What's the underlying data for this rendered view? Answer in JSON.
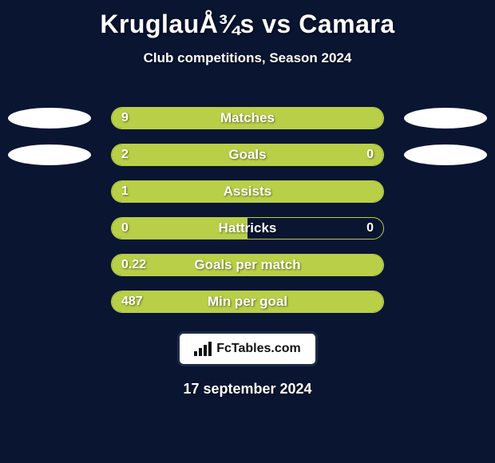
{
  "title": "KruglauÅ¾s vs Camara",
  "subtitle": "Club competitions, Season 2024",
  "background_color": "#0a1532",
  "accent_color": "#b8cf47",
  "text_color": "#ffffff",
  "footer_date": "17 september 2024",
  "logo_text": "FcTables.com",
  "stats": [
    {
      "label": "Matches",
      "left_value": "9",
      "right_value": "",
      "left_fill_pct": 100,
      "right_fill_pct": 0,
      "show_left_ellipse": true,
      "show_right_ellipse": true
    },
    {
      "label": "Goals",
      "left_value": "2",
      "right_value": "0",
      "left_fill_pct": 77,
      "right_fill_pct": 23,
      "show_left_ellipse": true,
      "show_right_ellipse": true
    },
    {
      "label": "Assists",
      "left_value": "1",
      "right_value": "",
      "left_fill_pct": 100,
      "right_fill_pct": 0,
      "show_left_ellipse": false,
      "show_right_ellipse": false
    },
    {
      "label": "Hattricks",
      "left_value": "0",
      "right_value": "0",
      "left_fill_pct": 50,
      "right_fill_pct": 0,
      "show_left_ellipse": false,
      "show_right_ellipse": false
    },
    {
      "label": "Goals per match",
      "left_value": "0.22",
      "right_value": "",
      "left_fill_pct": 100,
      "right_fill_pct": 0,
      "show_left_ellipse": false,
      "show_right_ellipse": false
    },
    {
      "label": "Min per goal",
      "left_value": "487",
      "right_value": "",
      "left_fill_pct": 100,
      "right_fill_pct": 0,
      "show_left_ellipse": false,
      "show_right_ellipse": false
    }
  ]
}
